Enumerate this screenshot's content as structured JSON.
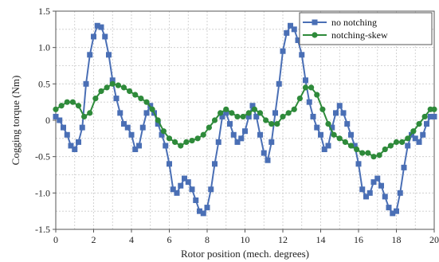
{
  "chart_data": {
    "type": "line",
    "title": "",
    "xlabel": "Rotor position (mech. degrees)",
    "ylabel": "Cogging torque (Nm)",
    "xlim": [
      0,
      20
    ],
    "ylim": [
      -1.5,
      1.5
    ],
    "xticks": [
      "0",
      "2",
      "4",
      "6",
      "8",
      "10",
      "12",
      "14",
      "16",
      "18",
      "20"
    ],
    "yticks": [
      "-1.5",
      "-1.0",
      "-0.5",
      "0",
      "0.5",
      "1.0",
      "1.5"
    ],
    "grid": true,
    "legend_position": "top-right",
    "series": [
      {
        "name": "no notching",
        "color": "#4a6fb5",
        "marker": "square",
        "x": [
          0,
          0.2,
          0.4,
          0.6,
          0.8,
          1.0,
          1.2,
          1.4,
          1.6,
          1.8,
          2.0,
          2.2,
          2.4,
          2.6,
          2.8,
          3.0,
          3.2,
          3.4,
          3.6,
          3.8,
          4.0,
          4.2,
          4.4,
          4.6,
          4.8,
          5.0,
          5.2,
          5.4,
          5.6,
          5.8,
          6.0,
          6.2,
          6.4,
          6.6,
          6.8,
          7.0,
          7.2,
          7.4,
          7.6,
          7.8,
          8.0,
          8.2,
          8.4,
          8.6,
          8.8,
          9.0,
          9.2,
          9.4,
          9.6,
          9.8,
          10.0,
          10.2,
          10.4,
          10.6,
          10.8,
          11.0,
          11.2,
          11.4,
          11.6,
          11.8,
          12.0,
          12.2,
          12.4,
          12.6,
          12.8,
          13.0,
          13.2,
          13.4,
          13.6,
          13.8,
          14.0,
          14.2,
          14.4,
          14.6,
          14.8,
          15.0,
          15.2,
          15.4,
          15.6,
          15.8,
          16.0,
          16.2,
          16.4,
          16.6,
          16.8,
          17.0,
          17.2,
          17.4,
          17.6,
          17.8,
          18.0,
          18.2,
          18.4,
          18.6,
          18.8,
          19.0,
          19.2,
          19.4,
          19.6,
          19.8,
          20.0
        ],
        "y": [
          0.05,
          0.0,
          -0.1,
          -0.2,
          -0.35,
          -0.4,
          -0.3,
          -0.1,
          0.5,
          0.9,
          1.15,
          1.3,
          1.28,
          1.15,
          0.9,
          0.55,
          0.3,
          0.1,
          -0.05,
          -0.1,
          -0.2,
          -0.4,
          -0.35,
          -0.1,
          0.1,
          0.2,
          0.1,
          -0.05,
          -0.2,
          -0.35,
          -0.6,
          -0.95,
          -1.0,
          -0.9,
          -0.8,
          -0.85,
          -0.95,
          -1.1,
          -1.25,
          -1.28,
          -1.2,
          -0.95,
          -0.6,
          -0.3,
          0.05,
          0.1,
          -0.05,
          -0.2,
          -0.3,
          -0.25,
          -0.15,
          0.05,
          0.2,
          0.05,
          -0.2,
          -0.45,
          -0.55,
          -0.3,
          0.1,
          0.5,
          0.95,
          1.2,
          1.3,
          1.25,
          1.1,
          0.9,
          0.55,
          0.25,
          0.05,
          -0.1,
          -0.2,
          -0.4,
          -0.35,
          -0.1,
          0.1,
          0.2,
          0.1,
          -0.05,
          -0.2,
          -0.35,
          -0.6,
          -0.95,
          -1.05,
          -1.0,
          -0.85,
          -0.8,
          -0.9,
          -1.05,
          -1.2,
          -1.28,
          -1.25,
          -1.0,
          -0.65,
          -0.35,
          -0.2,
          -0.25,
          -0.3,
          -0.2,
          -0.05,
          0.05,
          0.05
        ]
      },
      {
        "name": "notching-skew",
        "color": "#2e8a3a",
        "marker": "circle",
        "x": [
          0,
          0.3,
          0.6,
          0.9,
          1.2,
          1.5,
          1.8,
          2.1,
          2.4,
          2.7,
          3.0,
          3.3,
          3.6,
          3.9,
          4.2,
          4.5,
          4.8,
          5.1,
          5.4,
          5.7,
          6.0,
          6.3,
          6.6,
          6.9,
          7.2,
          7.5,
          7.8,
          8.1,
          8.4,
          8.7,
          9.0,
          9.3,
          9.6,
          9.9,
          10.2,
          10.5,
          10.8,
          11.1,
          11.4,
          11.7,
          12.0,
          12.3,
          12.6,
          12.9,
          13.2,
          13.5,
          13.8,
          14.1,
          14.4,
          14.7,
          15.0,
          15.3,
          15.6,
          15.9,
          16.2,
          16.5,
          16.8,
          17.1,
          17.4,
          17.7,
          18.0,
          18.3,
          18.6,
          18.9,
          19.2,
          19.5,
          19.8,
          20.0
        ],
        "y": [
          0.15,
          0.2,
          0.25,
          0.25,
          0.2,
          0.05,
          0.1,
          0.3,
          0.4,
          0.45,
          0.5,
          0.48,
          0.45,
          0.4,
          0.35,
          0.3,
          0.25,
          0.15,
          0.0,
          -0.15,
          -0.25,
          -0.3,
          -0.35,
          -0.3,
          -0.28,
          -0.25,
          -0.2,
          -0.1,
          0.0,
          0.1,
          0.15,
          0.1,
          0.05,
          0.05,
          0.1,
          0.15,
          0.1,
          0.0,
          -0.05,
          -0.05,
          0.05,
          0.1,
          0.15,
          0.3,
          0.45,
          0.45,
          0.35,
          0.15,
          -0.05,
          -0.2,
          -0.25,
          -0.3,
          -0.35,
          -0.4,
          -0.45,
          -0.45,
          -0.5,
          -0.48,
          -0.4,
          -0.35,
          -0.3,
          -0.3,
          -0.25,
          -0.15,
          -0.05,
          0.05,
          0.15,
          0.15
        ]
      }
    ]
  }
}
